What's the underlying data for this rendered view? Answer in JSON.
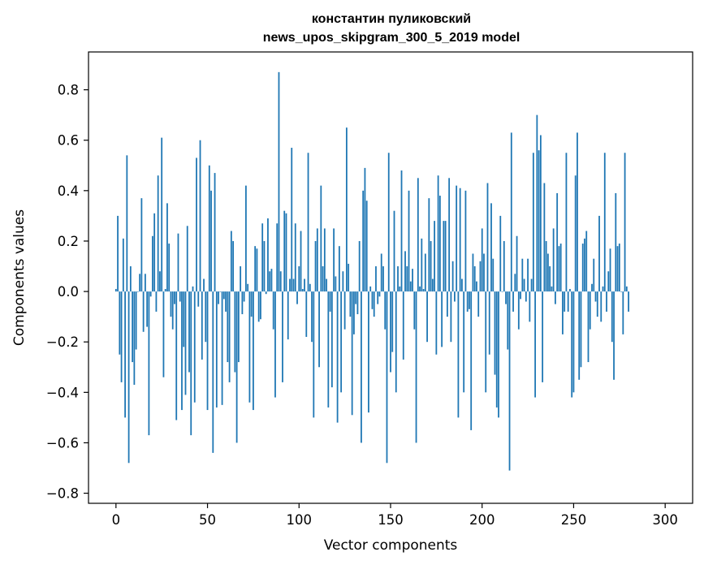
{
  "chart_data": {
    "type": "bar",
    "title_lines": [
      "константин пуликовский",
      "news_upos_skipgram_300_5_2019 model"
    ],
    "xlabel": "Vector components",
    "ylabel": "Components values",
    "xlim": [
      -15,
      315
    ],
    "ylim": [
      -0.84,
      0.95
    ],
    "xticks": [
      0,
      50,
      100,
      150,
      200,
      250,
      300
    ],
    "xtick_labels": [
      "0",
      "50",
      "100",
      "150",
      "200",
      "250",
      "300"
    ],
    "yticks": [
      -0.8,
      -0.6,
      -0.4,
      -0.2,
      0.0,
      0.2,
      0.4,
      0.6,
      0.8
    ],
    "ytick_labels": [
      "−0.8",
      "−0.6",
      "−0.4",
      "−0.2",
      "0.0",
      "0.2",
      "0.4",
      "0.6",
      "0.8"
    ],
    "grid": false,
    "bar_color": "#1f77b4",
    "series": [
      {
        "name": "components",
        "x_start": 0,
        "values": [
          0.01,
          0.3,
          -0.25,
          -0.36,
          0.21,
          -0.5,
          0.54,
          -0.68,
          0.1,
          -0.28,
          -0.37,
          -0.23,
          0.0,
          0.07,
          0.37,
          -0.16,
          0.07,
          -0.14,
          -0.57,
          -0.02,
          0.22,
          0.31,
          -0.08,
          0.46,
          0.08,
          0.61,
          -0.34,
          0.01,
          0.35,
          0.19,
          -0.1,
          -0.15,
          -0.05,
          -0.51,
          0.23,
          -0.04,
          -0.47,
          -0.22,
          -0.41,
          0.26,
          -0.32,
          -0.57,
          0.02,
          -0.44,
          0.53,
          -0.06,
          0.6,
          -0.27,
          0.05,
          -0.2,
          -0.47,
          0.5,
          0.4,
          -0.64,
          0.47,
          -0.46,
          -0.05,
          0.0,
          -0.45,
          -0.03,
          -0.08,
          -0.28,
          -0.36,
          0.24,
          0.2,
          -0.32,
          -0.6,
          -0.28,
          0.1,
          -0.09,
          -0.04,
          0.42,
          0.03,
          -0.44,
          -0.1,
          -0.47,
          0.18,
          0.17,
          -0.12,
          -0.11,
          0.27,
          0.2,
          -0.01,
          0.29,
          0.08,
          0.09,
          -0.15,
          -0.42,
          0.27,
          0.87,
          0.08,
          -0.36,
          0.32,
          0.31,
          -0.19,
          0.05,
          0.57,
          0.05,
          0.27,
          -0.05,
          0.1,
          0.24,
          0.01,
          0.05,
          -0.18,
          0.55,
          0.03,
          -0.2,
          -0.5,
          0.2,
          0.25,
          -0.3,
          0.42,
          0.1,
          0.25,
          0.05,
          -0.46,
          -0.08,
          -0.38,
          0.25,
          0.06,
          -0.52,
          0.18,
          -0.4,
          0.08,
          -0.15,
          0.65,
          0.11,
          -0.1,
          -0.49,
          -0.17,
          -0.05,
          -0.09,
          0.2,
          -0.6,
          0.4,
          0.49,
          0.36,
          -0.48,
          0.02,
          -0.07,
          -0.1,
          0.1,
          -0.05,
          -0.02,
          0.15,
          0.1,
          -0.15,
          -0.68,
          0.55,
          -0.32,
          -0.24,
          0.32,
          -0.4,
          0.1,
          0.02,
          0.48,
          -0.27,
          0.16,
          0.1,
          0.4,
          0.04,
          0.09,
          -0.15,
          -0.6,
          0.45,
          0.02,
          0.21,
          0.01,
          0.15,
          -0.2,
          0.37,
          0.2,
          0.05,
          0.28,
          -0.25,
          0.46,
          0.38,
          -0.22,
          0.28,
          0.28,
          -0.1,
          0.45,
          -0.2,
          0.12,
          -0.04,
          0.42,
          -0.5,
          0.41,
          0.05,
          -0.4,
          0.4,
          -0.08,
          -0.07,
          -0.55,
          0.15,
          0.1,
          0.04,
          -0.1,
          0.12,
          0.25,
          0.15,
          -0.4,
          0.43,
          -0.25,
          0.35,
          0.13,
          -0.33,
          -0.46,
          -0.5,
          0.3,
          0.0,
          0.2,
          -0.05,
          -0.23,
          -0.71,
          0.63,
          -0.08,
          0.07,
          0.22,
          -0.15,
          -0.03,
          0.13,
          0.05,
          -0.04,
          0.13,
          -0.12,
          0.05,
          0.55,
          -0.42,
          0.7,
          0.56,
          0.62,
          -0.36,
          0.43,
          0.2,
          0.15,
          0.1,
          0.02,
          0.25,
          -0.05,
          0.39,
          0.18,
          0.19,
          -0.17,
          -0.08,
          0.55,
          -0.08,
          0.01,
          -0.42,
          -0.4,
          0.46,
          0.63,
          -0.35,
          -0.3,
          0.19,
          0.21,
          0.24,
          -0.28,
          -0.15,
          0.03,
          0.13,
          -0.04,
          -0.1,
          0.3,
          -0.12,
          0.02,
          0.55,
          -0.08,
          0.08,
          0.17,
          -0.2,
          -0.35,
          0.39,
          0.18,
          0.19,
          0.0,
          -0.17,
          0.55,
          0.02,
          -0.08
        ]
      }
    ]
  }
}
